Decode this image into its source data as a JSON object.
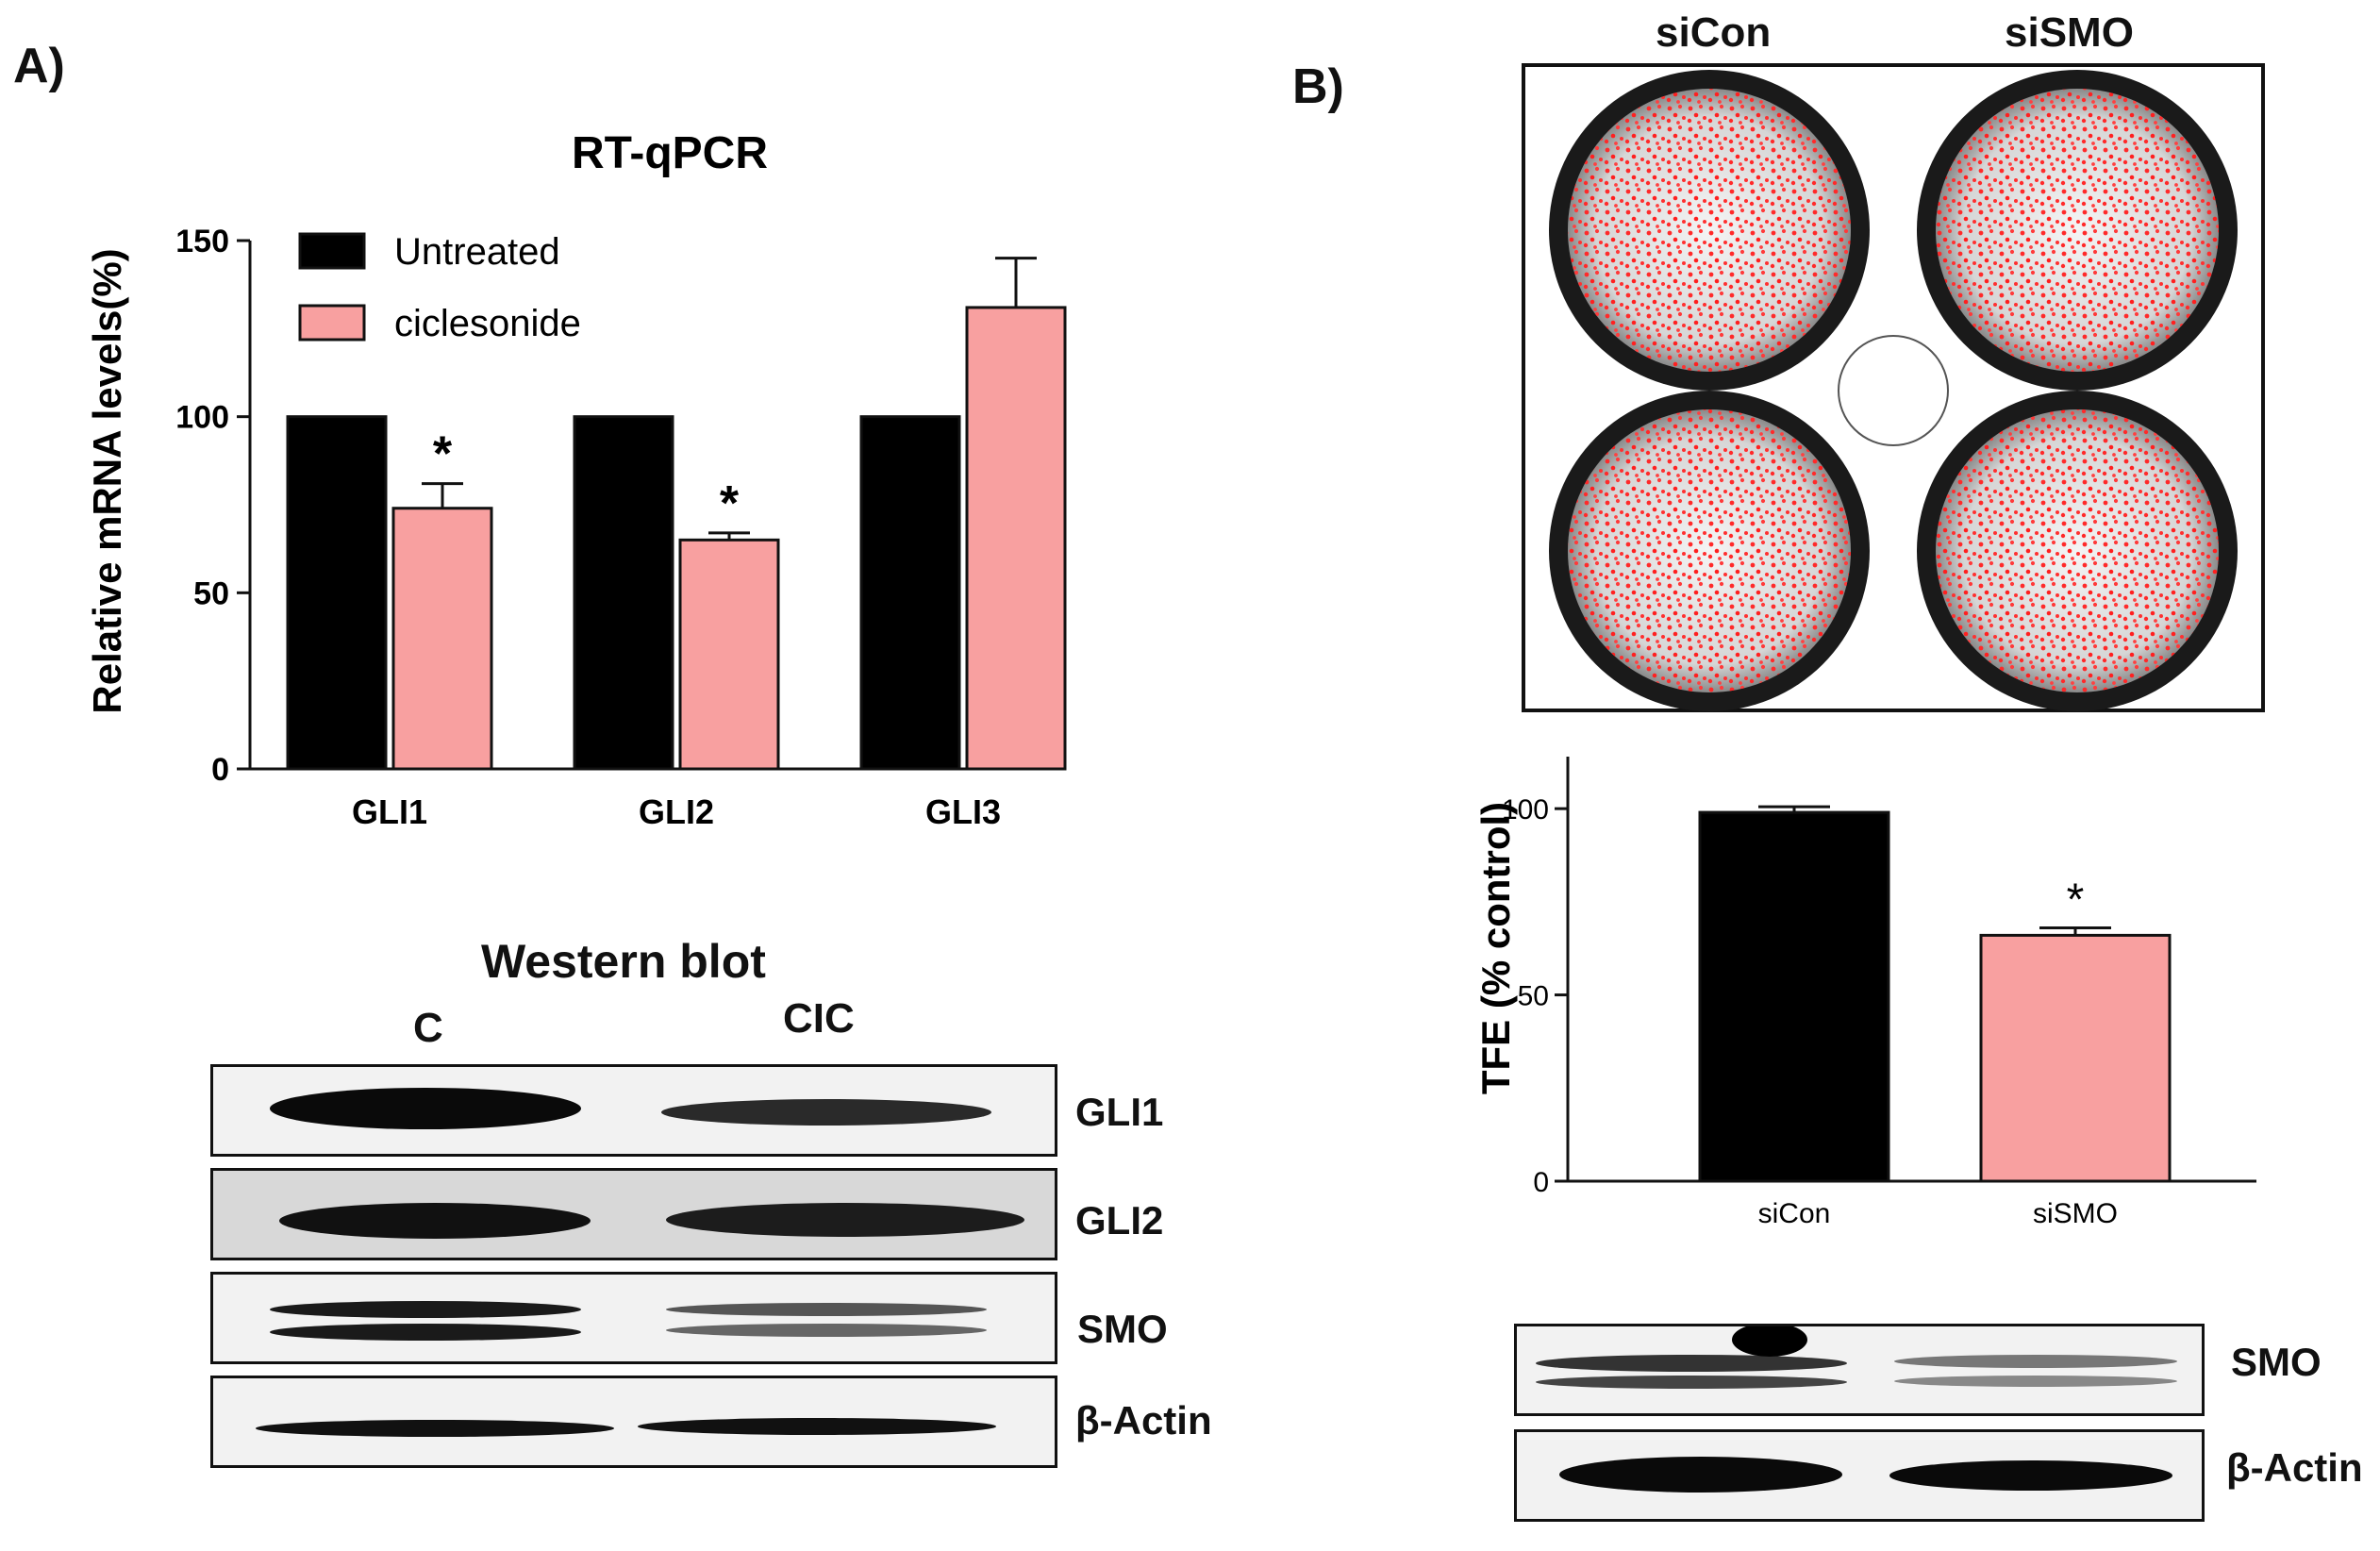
{
  "panelA": {
    "label": "A)",
    "chart": {
      "type": "bar",
      "title": "RT-qPCR",
      "ylabel": "Relative mRNA levels(%)",
      "ylim": [
        0,
        150
      ],
      "yticks": [
        "0",
        "50",
        "100",
        "150"
      ],
      "categories": [
        "GLI1",
        "GLI2",
        "GLI3"
      ],
      "series": [
        {
          "name": "Untreated",
          "color": "#000000",
          "values": [
            100,
            100,
            100
          ],
          "errors": [
            0,
            0,
            0
          ]
        },
        {
          "name": "ciclesonide",
          "color": "#f8a0a0",
          "values": [
            74,
            65,
            131
          ],
          "errors": [
            7,
            2,
            14
          ]
        }
      ],
      "significance": [
        "*",
        "*",
        ""
      ]
    },
    "western": {
      "title": "Western blot",
      "lanes": [
        "C",
        "CIC"
      ],
      "rows": [
        "GLI1",
        "GLI2",
        "SMO",
        "β-Actin"
      ]
    }
  },
  "panelB": {
    "label": "B)",
    "plate": {
      "labels": [
        "siCon",
        "siSMO"
      ]
    },
    "chart": {
      "type": "bar",
      "ylabel": "TFE (% control)",
      "ylim": [
        0,
        100
      ],
      "yticks": [
        "0",
        "50",
        "100"
      ],
      "categories": [
        "siCon",
        "siSMO"
      ],
      "values": [
        99,
        66
      ],
      "errors": [
        1.5,
        2
      ],
      "colors": [
        "#000000",
        "#f8a0a0"
      ],
      "significance": [
        "",
        "*"
      ]
    },
    "western": {
      "rows": [
        "SMO",
        "β-Actin"
      ]
    }
  }
}
